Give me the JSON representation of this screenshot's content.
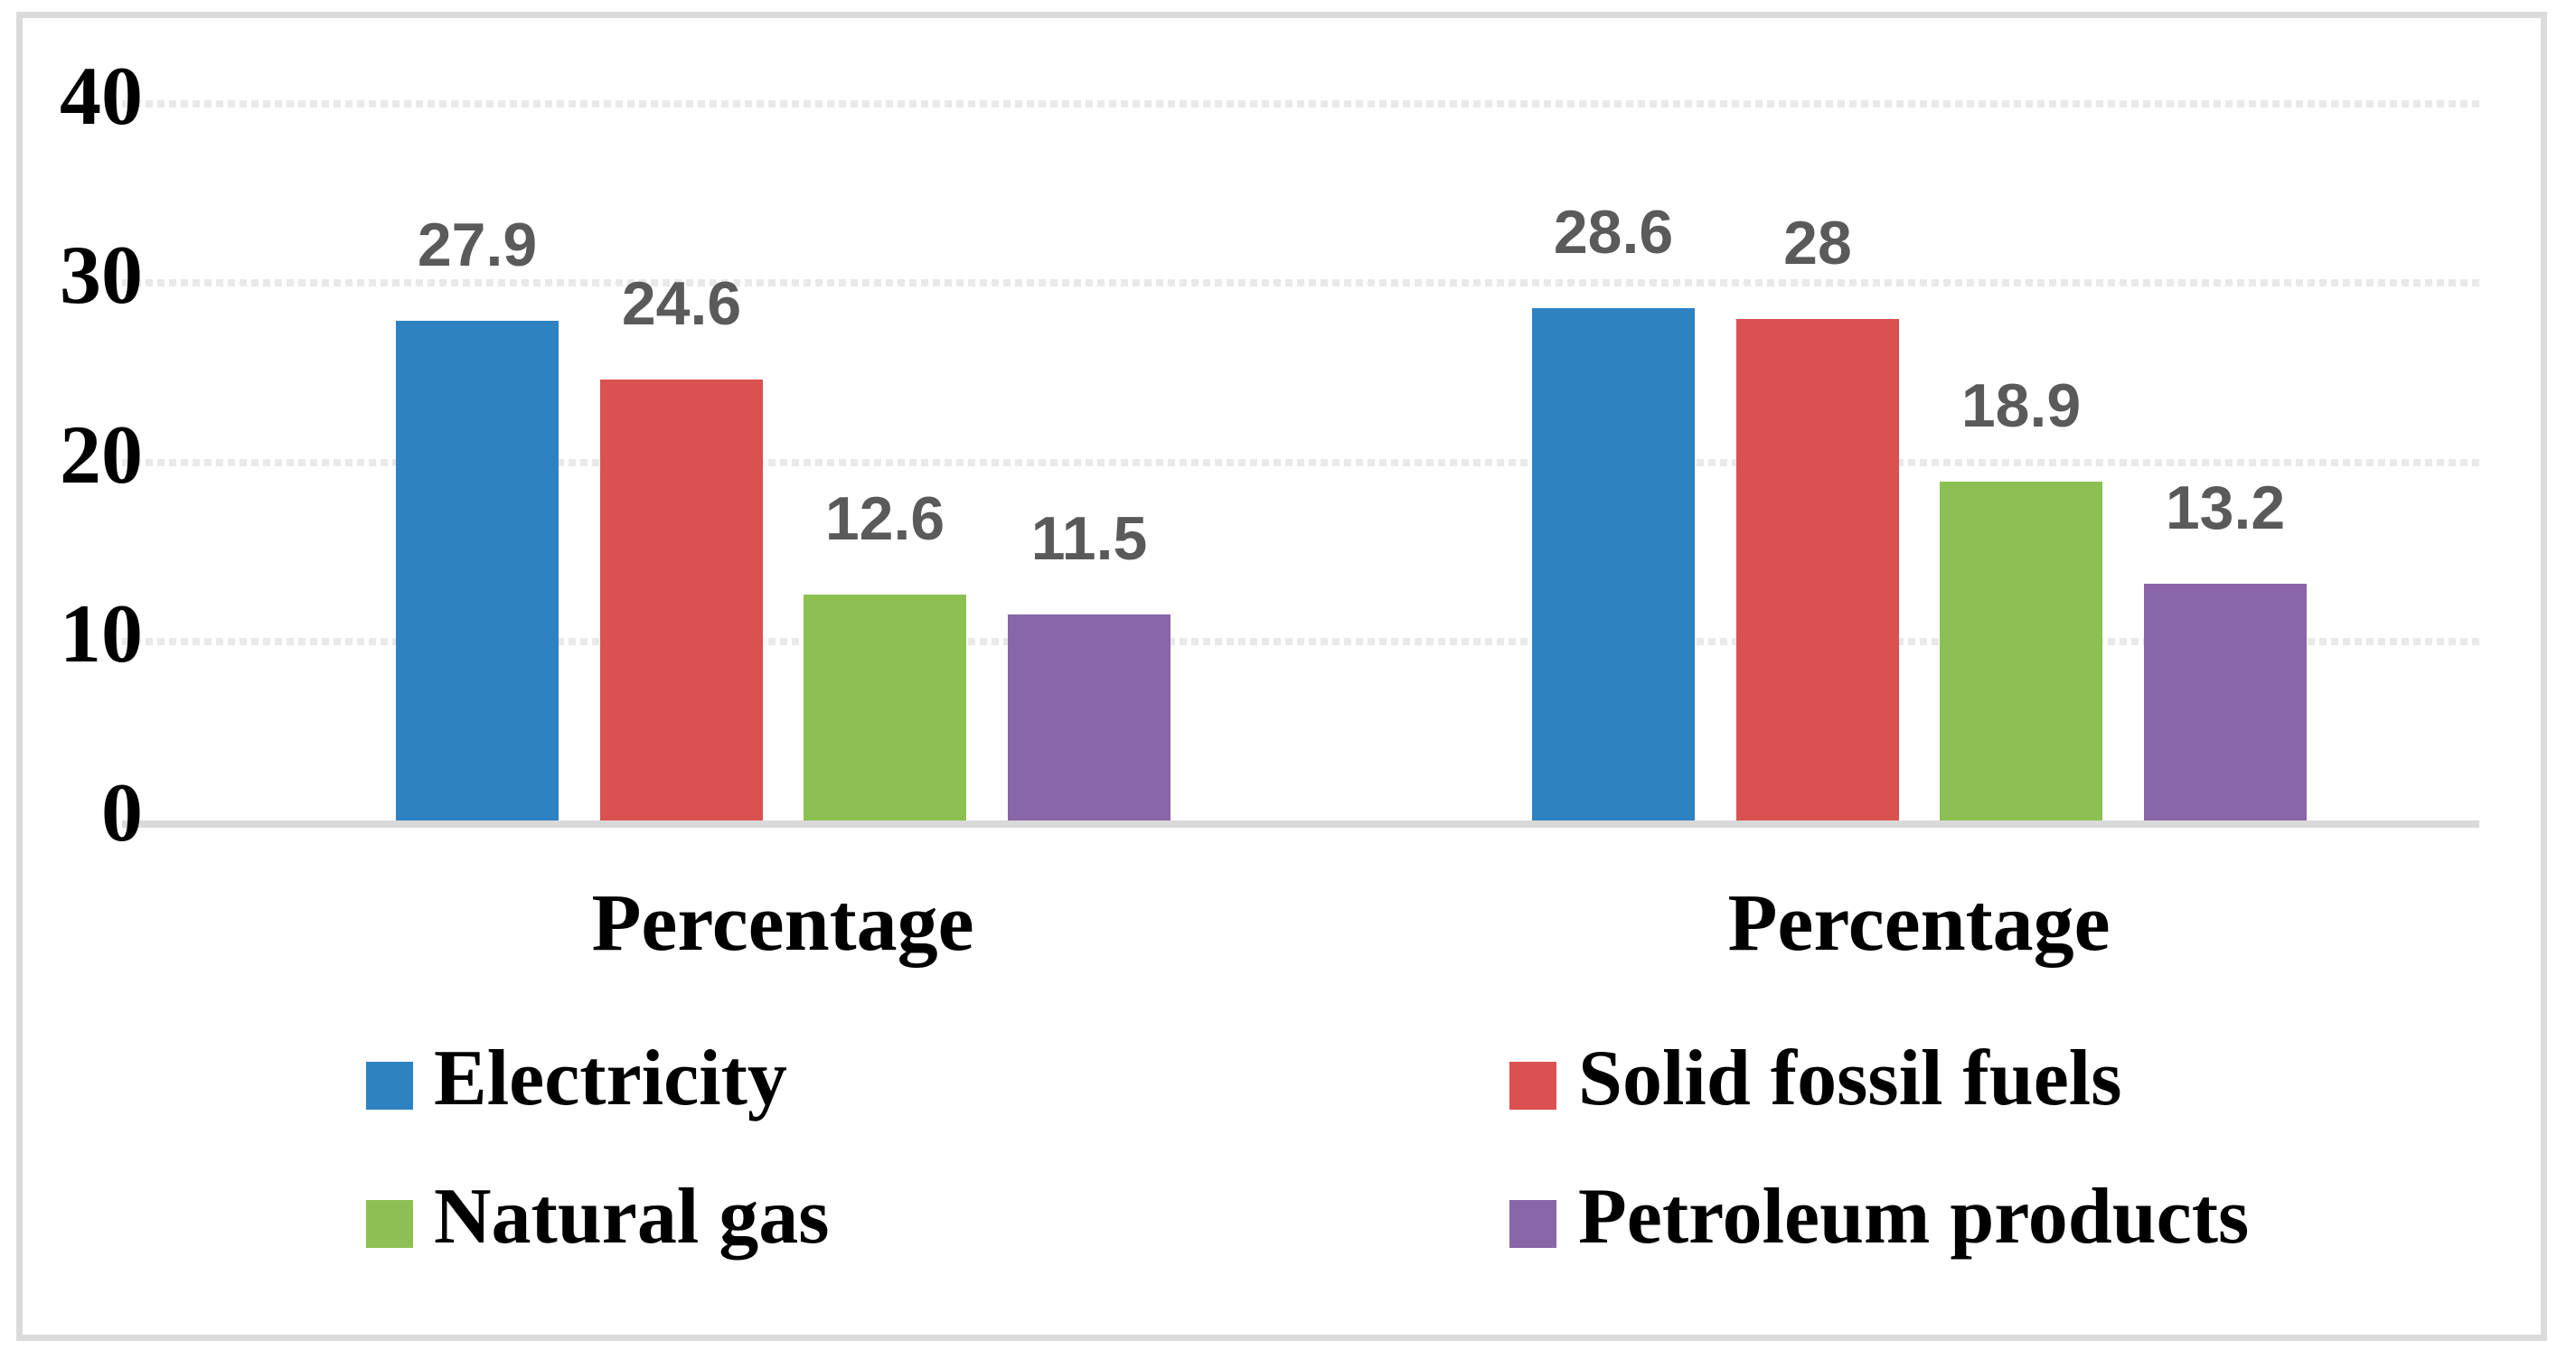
{
  "chart_data": {
    "type": "bar",
    "title": "",
    "categories": [
      "Percentage",
      "Percentage"
    ],
    "series": [
      {
        "name": "Electricity",
        "color": "#2e82c1",
        "values": [
          27.9,
          28.6
        ],
        "labels": [
          "27.9",
          "28.6"
        ]
      },
      {
        "name": "Solid fossil fuels",
        "color": "#db5050",
        "values": [
          24.6,
          28.0
        ],
        "labels": [
          "24.6",
          "28"
        ]
      },
      {
        "name": "Natural gas",
        "color": "#8dc052",
        "values": [
          12.6,
          18.9
        ],
        "labels": [
          "12.6",
          "18.9"
        ]
      },
      {
        "name": "Petroleum products",
        "color": "#8a65a8",
        "values": [
          11.5,
          13.2
        ],
        "labels": [
          "11.5",
          "13.2"
        ]
      }
    ],
    "yticks": [
      0,
      10,
      20,
      30,
      40
    ],
    "ylim": [
      0,
      40
    ],
    "grid": "horizontal-dotted",
    "legend_position": "bottom",
    "colors": {
      "value_label_gray": "#5a5a5a",
      "axis_line": "#d9d9d9",
      "gridline": "#e9e9e9",
      "border": "#dbdbdb",
      "tick_text": "#000000"
    }
  }
}
